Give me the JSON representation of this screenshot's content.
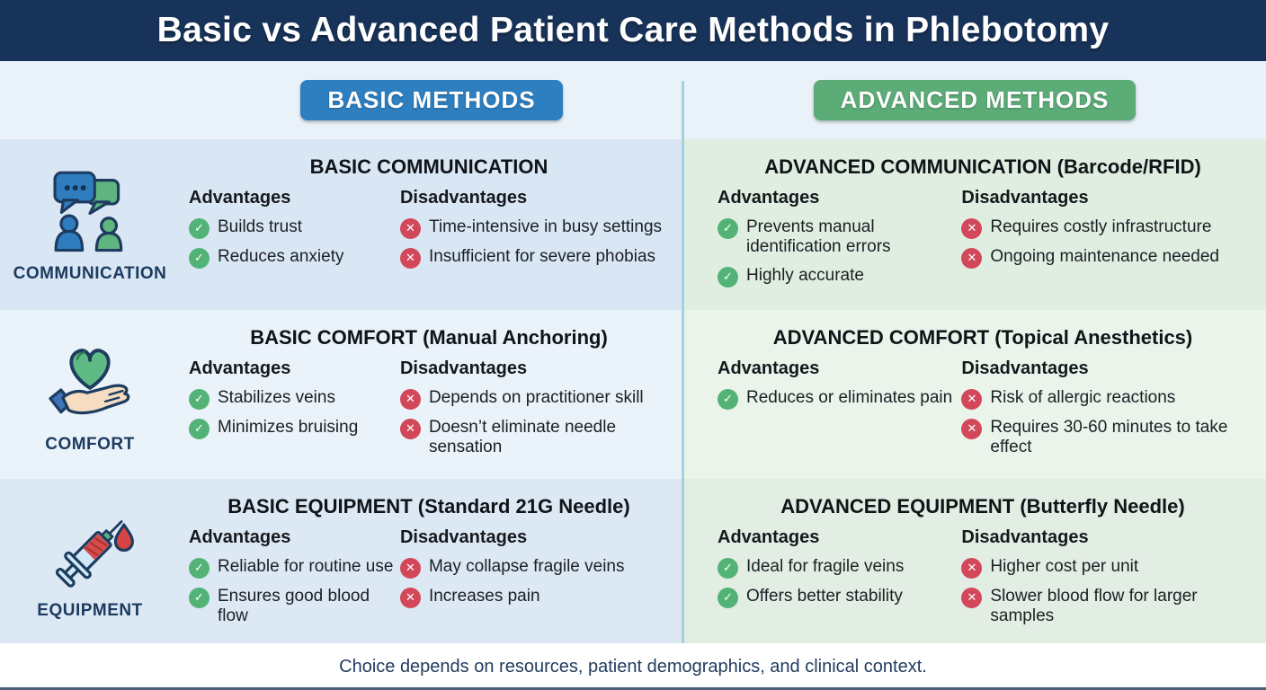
{
  "title": "Basic vs Advanced Patient Care Methods in Phlebotomy",
  "method_headers": {
    "basic": "BASIC METHODS",
    "advanced": "ADVANCED METHODS"
  },
  "section_labels": {
    "advantages": "Advantages",
    "disadvantages": "Disadvantages"
  },
  "rows": [
    {
      "category": "COMMUNICATION",
      "icon": "communication-icon",
      "basic": {
        "title": "BASIC COMMUNICATION",
        "advantages": [
          "Builds trust",
          "Reduces anxiety"
        ],
        "disadvantages": [
          "Time-intensive in busy settings",
          "Insufficient for severe phobias"
        ]
      },
      "advanced": {
        "title": "ADVANCED COMMUNICATION (Barcode/RFID)",
        "advantages": [
          "Prevents manual identification errors",
          "Highly accurate"
        ],
        "disadvantages": [
          "Requires costly infrastructure",
          "Ongoing maintenance needed"
        ]
      }
    },
    {
      "category": "COMFORT",
      "icon": "heart-in-hand-icon",
      "basic": {
        "title": "BASIC COMFORT (Manual Anchoring)",
        "advantages": [
          "Stabilizes veins",
          "Minimizes bruising"
        ],
        "disadvantages": [
          "Depends on practitioner skill",
          "Doesn’t eliminate needle sensation"
        ]
      },
      "advanced": {
        "title": "ADVANCED COMFORT (Topical Anesthetics)",
        "advantages": [
          "Reduces or eliminates pain"
        ],
        "disadvantages": [
          "Risk of allergic reactions",
          "Requires 30-60 minutes to take effect"
        ]
      }
    },
    {
      "category": "EQUIPMENT",
      "icon": "syringe-icon",
      "basic": {
        "title": "BASIC EQUIPMENT (Standard 21G Needle)",
        "advantages": [
          "Reliable for routine use",
          "Ensures good blood flow"
        ],
        "disadvantages": [
          "May collapse fragile veins",
          "Increases pain"
        ]
      },
      "advanced": {
        "title": "ADVANCED EQUIPMENT (Butterfly Needle)",
        "advantages": [
          "Ideal for fragile veins",
          "Offers better stability"
        ],
        "disadvantages": [
          "Higher cost per unit",
          "Slower blood flow for larger samples"
        ]
      }
    }
  ],
  "footer_note": "Choice depends on resources, patient demographics, and clinical context.",
  "colors": {
    "header_bg": "#18335a",
    "band_bg": "#e9f1f9",
    "basic_accent": "#2e7fc0",
    "advanced_accent": "#5cac77",
    "basic_row_bg": "#d9e7f5",
    "advanced_row_bg": "#dfeee1",
    "check_green": "#53b377",
    "cross_red": "#d2485a",
    "divider": "#a6cfe0",
    "label_navy": "#1c3a5e"
  }
}
